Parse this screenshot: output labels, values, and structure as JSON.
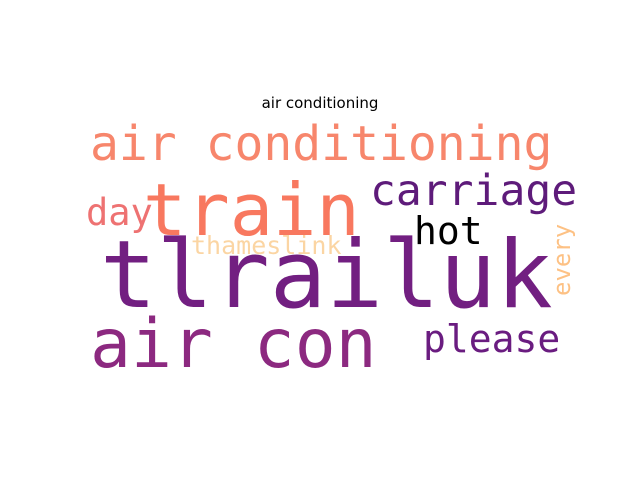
{
  "title": "air conditioning",
  "words": [
    {
      "text": "air conditioning",
      "color": "#f7866c"
    },
    {
      "text": "train",
      "color": "#f8785f"
    },
    {
      "text": "carriage",
      "color": "#5e1b7a"
    },
    {
      "text": "day",
      "color": "#ee7272"
    },
    {
      "text": "hot",
      "color": "#000000"
    },
    {
      "text": "thameslink",
      "color": "#fbd5a3"
    },
    {
      "text": "every",
      "color": "#fdc184"
    },
    {
      "text": "tlrailuk",
      "color": "#721f81"
    },
    {
      "text": "air con",
      "color": "#8c2980"
    },
    {
      "text": "please",
      "color": "#6a1c80"
    }
  ]
}
